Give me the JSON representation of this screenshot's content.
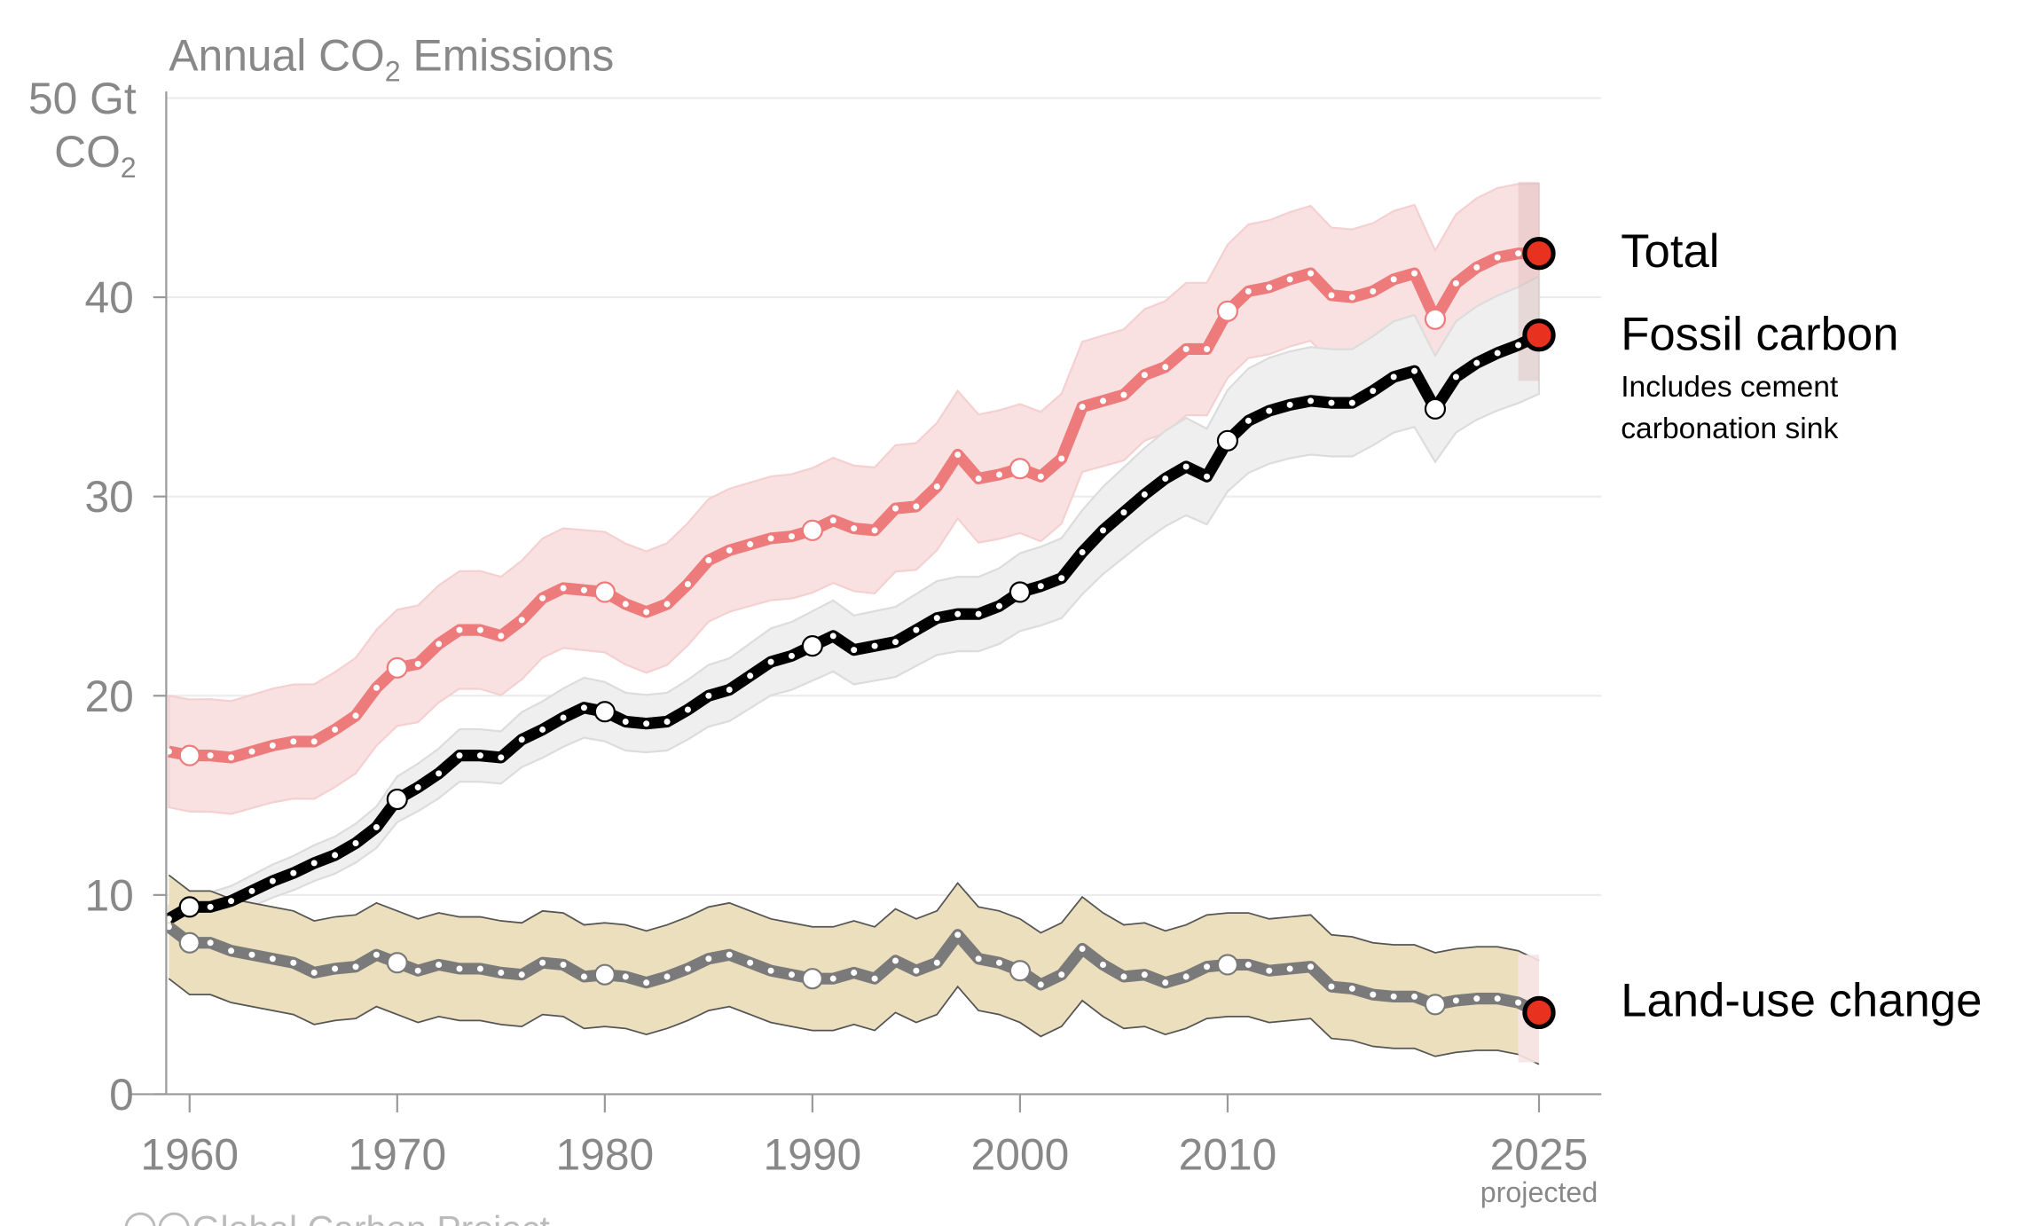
{
  "chart_data": {
    "type": "line",
    "title": "Annual CO",
    "title_sub": "2",
    "title_tail": " Emissions",
    "ylabel_line1": "50 Gt",
    "ylabel_line2": "CO",
    "ylabel_sub": "2",
    "ylim": [
      0,
      50
    ],
    "xlim": [
      1959,
      2025
    ],
    "yticks": [
      "0",
      "10",
      "20",
      "30",
      "40"
    ],
    "ytick_values": [
      0,
      10,
      20,
      30,
      40
    ],
    "xticks": [
      "1960",
      "1970",
      "1980",
      "1990",
      "2000",
      "2010",
      "2025"
    ],
    "xtick_values": [
      1960,
      1970,
      1980,
      1990,
      2000,
      2010,
      2025
    ],
    "xtick_note": "projected",
    "grid": true,
    "x": [
      1959,
      1960,
      1961,
      1962,
      1963,
      1964,
      1965,
      1966,
      1967,
      1968,
      1969,
      1970,
      1971,
      1972,
      1973,
      1974,
      1975,
      1976,
      1977,
      1978,
      1979,
      1980,
      1981,
      1982,
      1983,
      1984,
      1985,
      1986,
      1987,
      1988,
      1989,
      1990,
      1991,
      1992,
      1993,
      1994,
      1995,
      1996,
      1997,
      1998,
      1999,
      2000,
      2001,
      2002,
      2003,
      2004,
      2005,
      2006,
      2007,
      2008,
      2009,
      2010,
      2011,
      2012,
      2013,
      2014,
      2015,
      2016,
      2017,
      2018,
      2019,
      2020,
      2021,
      2022,
      2023,
      2024,
      2025
    ],
    "series": [
      {
        "name": "Total",
        "color": "#ee7b7b",
        "band_color": "#f9e1e1",
        "uncertainty": [
          2.8,
          3.5
        ],
        "values": [
          17.2,
          17.0,
          17.0,
          16.9,
          17.2,
          17.5,
          17.7,
          17.7,
          18.3,
          19.0,
          20.4,
          21.4,
          21.6,
          22.6,
          23.3,
          23.3,
          23.0,
          23.8,
          24.9,
          25.4,
          25.3,
          25.2,
          24.6,
          24.2,
          24.6,
          25.6,
          26.8,
          27.3,
          27.6,
          27.9,
          28.0,
          28.3,
          28.8,
          28.4,
          28.3,
          29.4,
          29.5,
          30.5,
          32.1,
          30.9,
          31.1,
          31.4,
          31.0,
          31.9,
          34.5,
          34.8,
          35.1,
          36.1,
          36.5,
          37.4,
          37.4,
          39.3,
          40.3,
          40.5,
          40.9,
          41.2,
          40.1,
          40.0,
          40.3,
          40.9,
          41.2,
          38.9,
          40.7,
          41.5,
          42.0,
          42.2,
          42.2
        ]
      },
      {
        "name": "Fossil carbon",
        "note_line1": "Includes cement",
        "note_line2": "carbonation sink",
        "color": "#000000",
        "band_color": "#efefef",
        "uncertainty_fraction": 0.05,
        "values": [
          8.8,
          9.4,
          9.4,
          9.7,
          10.2,
          10.7,
          11.1,
          11.6,
          12.0,
          12.6,
          13.4,
          14.8,
          15.4,
          16.1,
          17.0,
          17.0,
          16.9,
          17.8,
          18.3,
          18.9,
          19.4,
          19.2,
          18.7,
          18.6,
          18.7,
          19.3,
          20.0,
          20.3,
          21.0,
          21.7,
          22.0,
          22.5,
          23.0,
          22.3,
          22.5,
          22.7,
          23.3,
          23.9,
          24.1,
          24.1,
          24.5,
          25.2,
          25.5,
          25.9,
          27.2,
          28.3,
          29.2,
          30.1,
          30.9,
          31.5,
          31.0,
          32.8,
          33.8,
          34.3,
          34.6,
          34.8,
          34.7,
          34.7,
          35.3,
          36.0,
          36.3,
          34.4,
          36.0,
          36.7,
          37.2,
          37.6,
          38.1
        ]
      },
      {
        "name": "Land-use change",
        "color": "#7a7a7a",
        "band_color": "#ebdfbd",
        "uncertainty": [
          2.6,
          2.6
        ],
        "values": [
          8.4,
          7.6,
          7.6,
          7.2,
          7.0,
          6.8,
          6.6,
          6.1,
          6.3,
          6.4,
          7.0,
          6.6,
          6.2,
          6.5,
          6.3,
          6.3,
          6.1,
          6.0,
          6.6,
          6.5,
          5.9,
          6.0,
          5.9,
          5.6,
          5.9,
          6.3,
          6.8,
          7.0,
          6.6,
          6.2,
          6.0,
          5.8,
          5.8,
          6.1,
          5.8,
          6.7,
          6.2,
          6.6,
          8.0,
          6.8,
          6.6,
          6.2,
          5.5,
          6.0,
          7.3,
          6.5,
          5.9,
          6.0,
          5.6,
          5.9,
          6.4,
          6.5,
          6.5,
          6.2,
          6.3,
          6.4,
          5.4,
          5.3,
          5.0,
          4.9,
          4.9,
          4.5,
          4.7,
          4.8,
          4.8,
          4.6,
          4.1
        ]
      }
    ],
    "projected_year": 2025,
    "end_marker_color": "#e8321f"
  },
  "credit": "Global Carbon Project",
  "credit_icons": [
    "cc-icon",
    "by-icon"
  ]
}
